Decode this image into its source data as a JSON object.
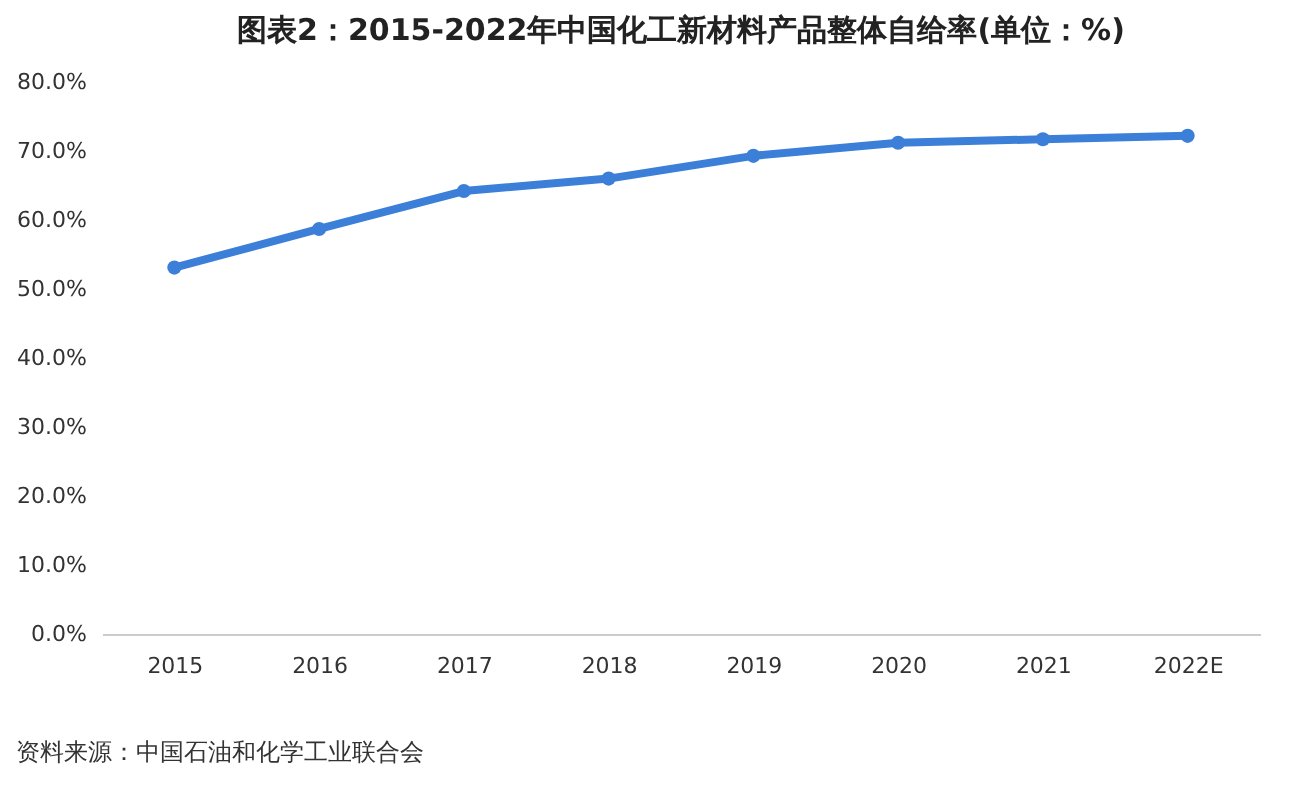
{
  "chart_data": {
    "type": "line",
    "title": "图表2：2015-2022年中国化工新材料产品整体自给率(单位：%)",
    "categories": [
      "2015",
      "2016",
      "2017",
      "2018",
      "2019",
      "2020",
      "2021",
      "2022E"
    ],
    "series": [
      {
        "color": "#3c7fd8",
        "values": [
          53.1,
          58.7,
          64.2,
          66.0,
          69.3,
          71.2,
          71.7,
          72.2
        ]
      }
    ],
    "ylim": [
      0,
      80
    ],
    "yticks": [
      {
        "value": 0,
        "label": "0.0%"
      },
      {
        "value": 10,
        "label": "10.0%"
      },
      {
        "value": 20,
        "label": "20.0%"
      },
      {
        "value": 30,
        "label": "30.0%"
      },
      {
        "value": 40,
        "label": "40.0%"
      },
      {
        "value": 50,
        "label": "50.0%"
      },
      {
        "value": 60,
        "label": "60.0%"
      },
      {
        "value": 70,
        "label": "70.0%"
      },
      {
        "value": 80,
        "label": "80.0%"
      }
    ],
    "marker": "circle",
    "line_style": "solid",
    "grid": false,
    "legend": false,
    "annotations": [
      "资料来源：中国石油和化学工业联合会"
    ]
  }
}
